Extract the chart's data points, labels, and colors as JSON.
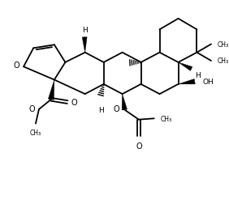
{
  "bg_color": "#ffffff",
  "line_color": "#000000",
  "lw": 1.3,
  "figsize": [
    2.82,
    2.53
  ],
  "dpi": 100,
  "xlim": [
    0,
    10
  ],
  "ylim": [
    0,
    9
  ]
}
